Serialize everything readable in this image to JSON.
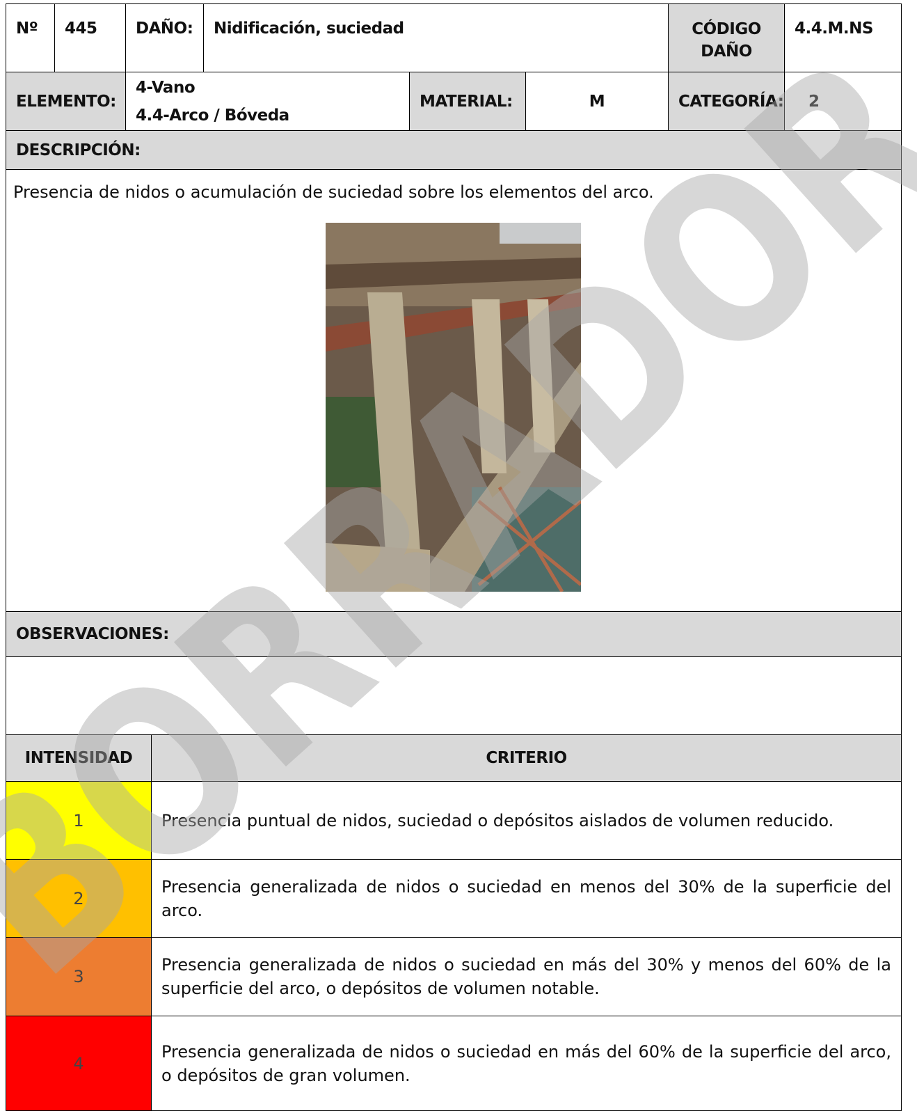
{
  "header": {
    "no_label": "Nº",
    "no": "445",
    "dano_label": "DAÑO:",
    "dano": "Nidificación, suciedad",
    "codigo_label": [
      "CÓDIGO",
      "DAÑO"
    ],
    "codigo": "4.4.M.NS",
    "elemento_label": "ELEMENTO:",
    "elemento": [
      "4-Vano",
      "4.4-Arco / Bóveda"
    ],
    "material_label": "MATERIAL:",
    "material": "M",
    "categoria_label": "CATEGORÍA:",
    "categoria": "2"
  },
  "descripcion": {
    "title": "DESCRIPCIÓN:",
    "text": "Presencia de nidos o acumulación de suciedad sobre los elementos del arco."
  },
  "observaciones": {
    "title": "OBSERVACIONES:"
  },
  "intensity_table": {
    "headers": [
      "INTENSIDAD",
      "CRITERIO"
    ],
    "rows": [
      {
        "level": "1",
        "color": "#ffff00",
        "criterion": "Presencia puntual de nidos, suciedad o depósitos aislados de volumen reducido."
      },
      {
        "level": "2",
        "color": "#ffc000",
        "criterion": "Presencia generalizada de nidos o suciedad en menos del 30% de la superficie del arco."
      },
      {
        "level": "3",
        "color": "#ed7d31",
        "criterion": "Presencia generalizada de nidos o suciedad en más del 30% y menos del 60% de la superficie del arco, o depósitos de volumen notable."
      },
      {
        "level": "4",
        "color": "#ff0000",
        "criterion": "Presencia generalizada de nidos o suciedad en más del 60% de la superficie del arco, o depósitos de gran volumen."
      }
    ]
  },
  "watermark": "BORRADOR"
}
